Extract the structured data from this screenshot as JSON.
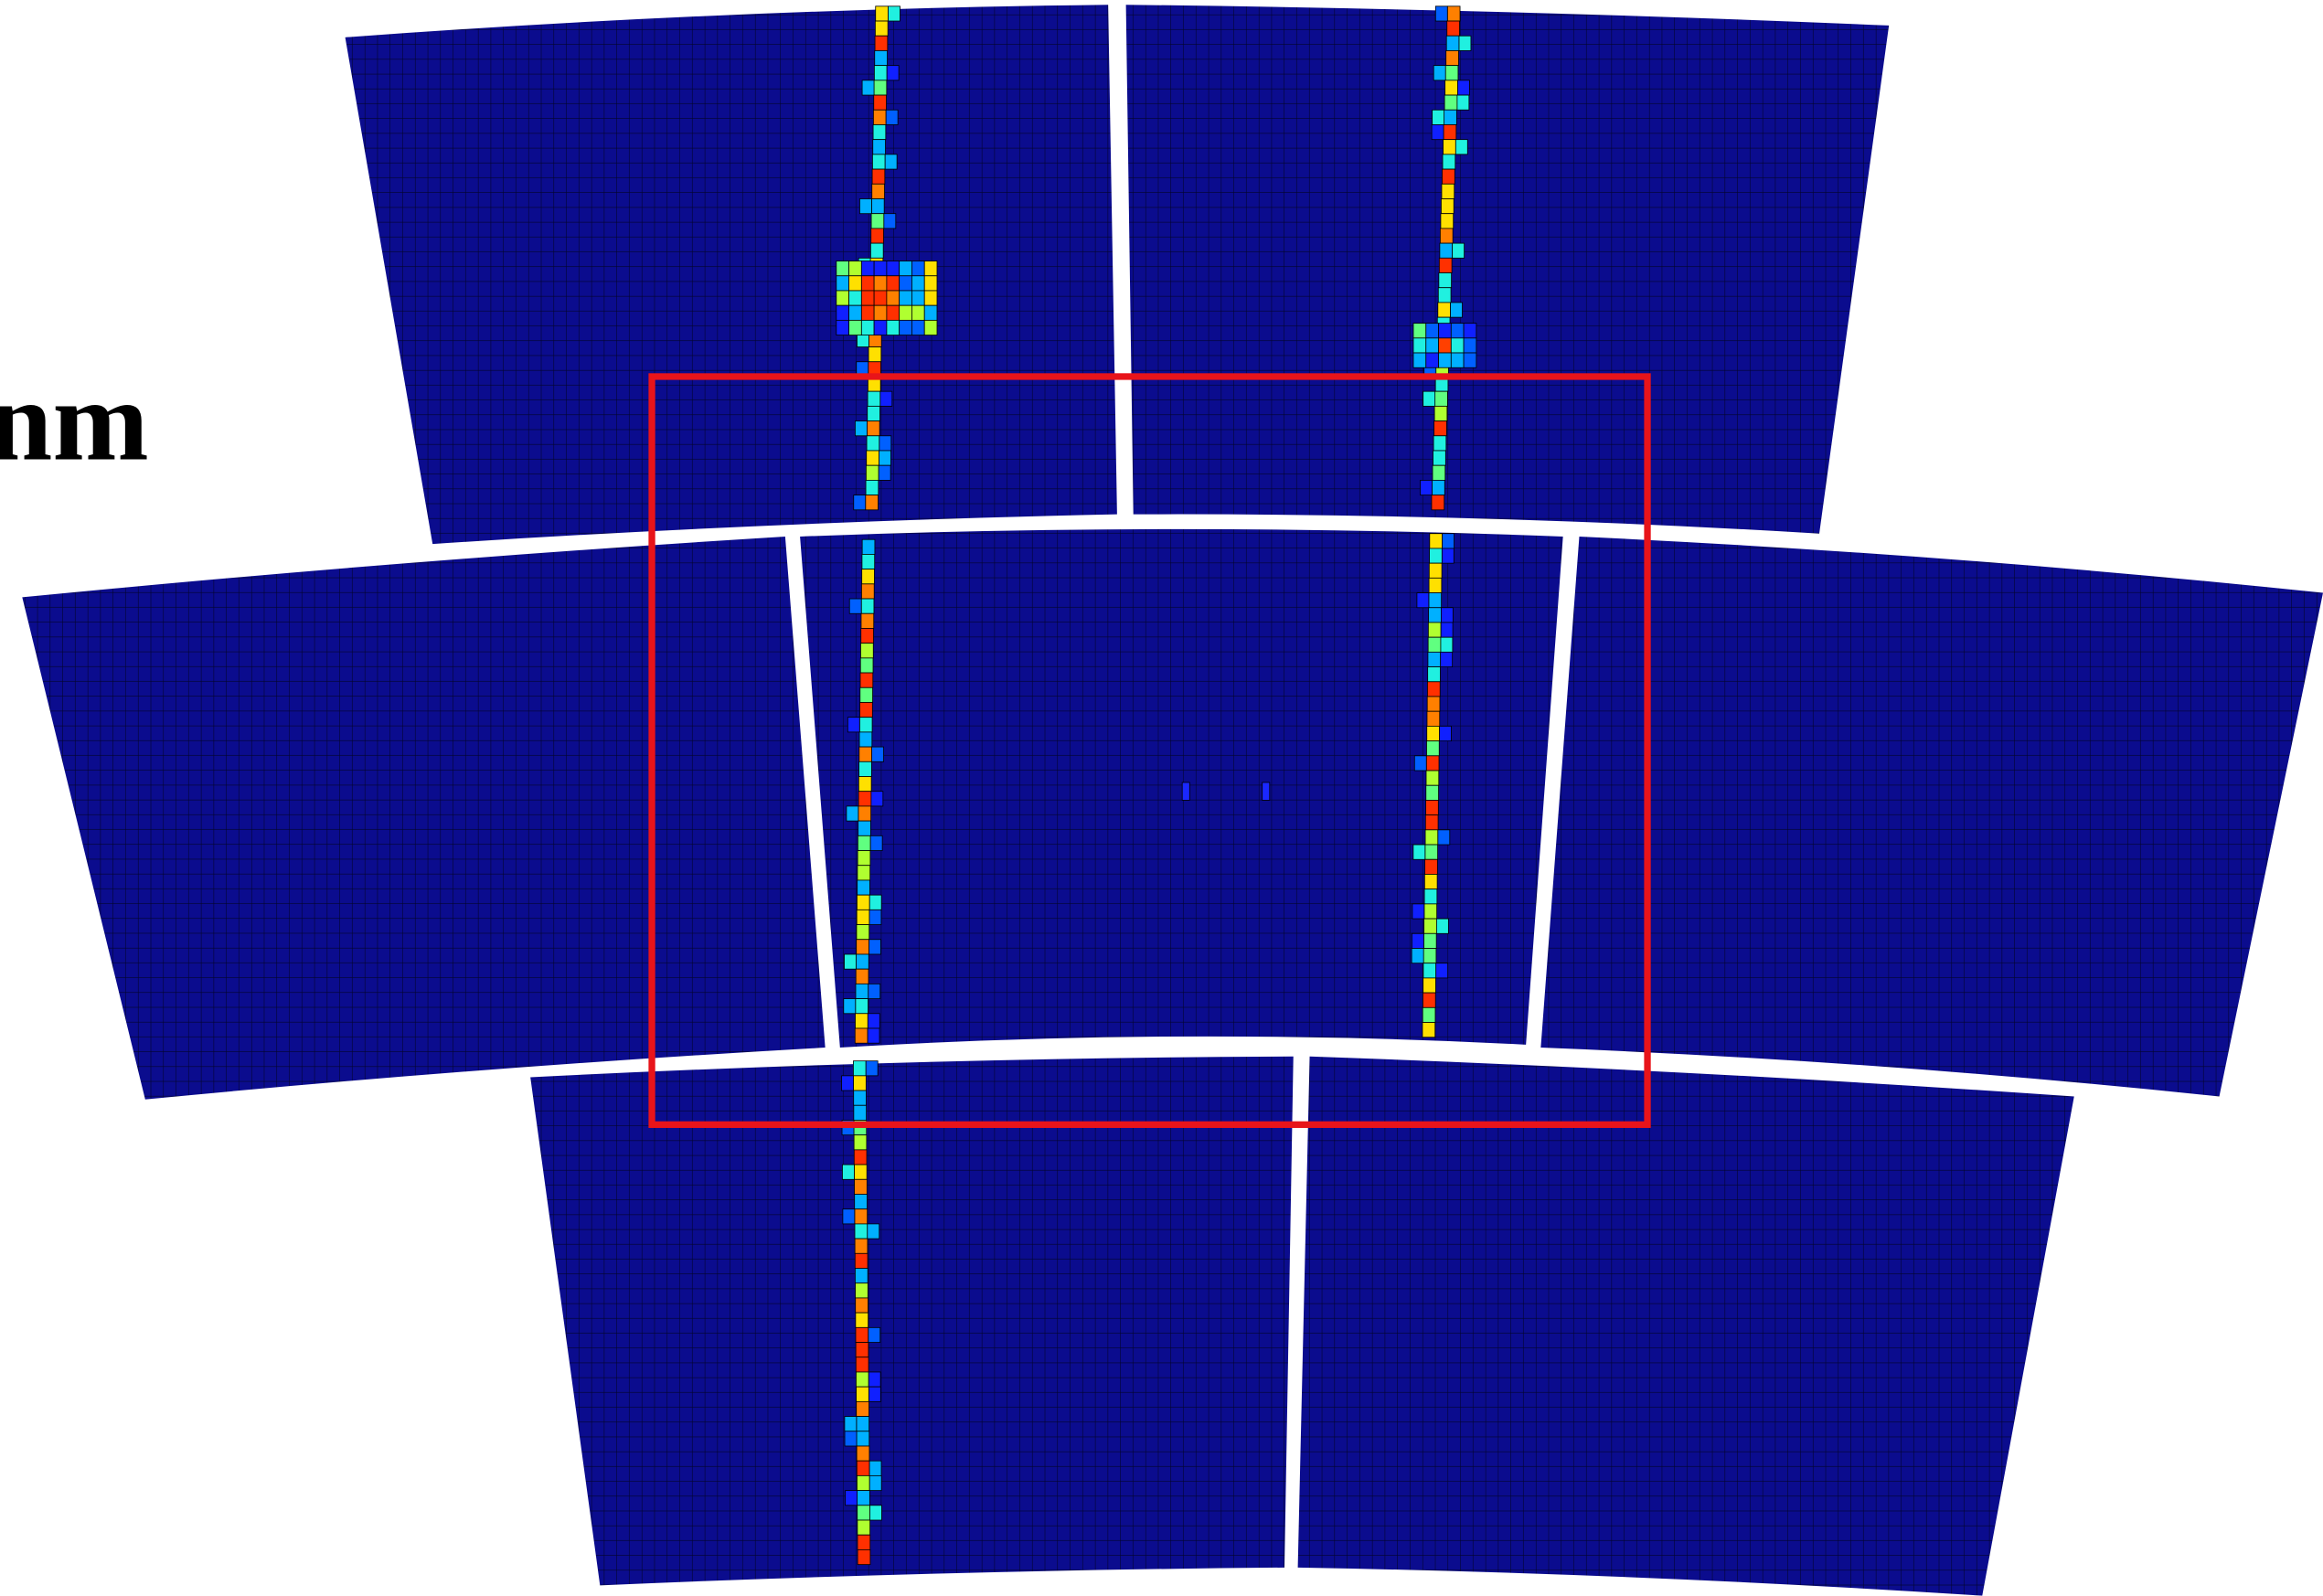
{
  "label": "nm"
}
